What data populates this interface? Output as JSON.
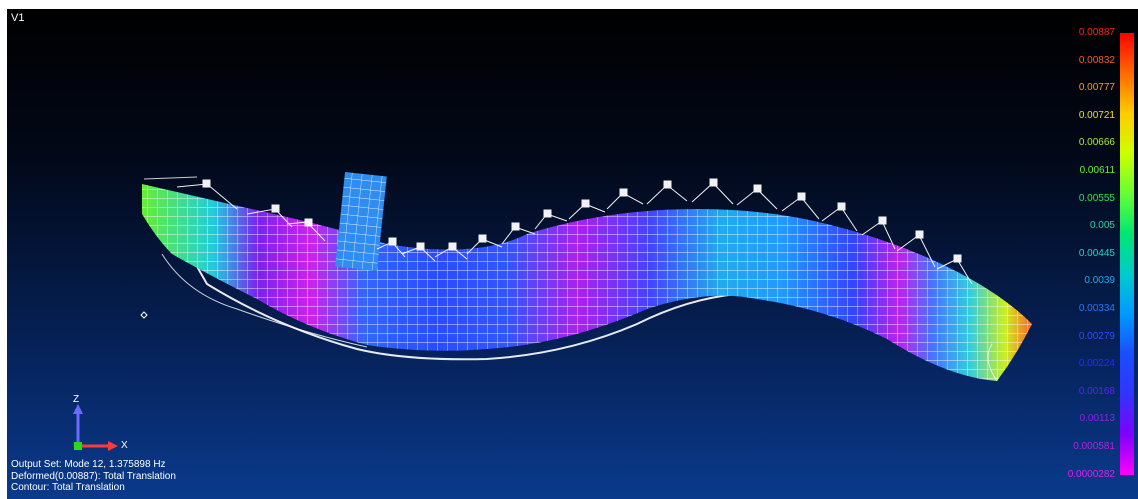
{
  "viewport": {
    "view_label": "V1"
  },
  "legend": {
    "values": [
      "0.00887",
      "0.00832",
      "0.00777",
      "0.00721",
      "0.00666",
      "0.00611",
      "0.00555",
      "0.005",
      "0.00445",
      "0.0039",
      "0.00334",
      "0.00279",
      "0.00224",
      "0.00168",
      "0.00113",
      "0.000581",
      "0.0000282"
    ],
    "label_colors": [
      "#ff2020",
      "#ff5a1e",
      "#ff9a18",
      "#e8e41c",
      "#a8f030",
      "#66f03a",
      "#2ee04c",
      "#2cd4a0",
      "#22d2d2",
      "#1ca8ee",
      "#1e78ff",
      "#2a50ff",
      "#2a2aff",
      "#5a24f0",
      "#8a22e8",
      "#b81ee8",
      "#e41cf0"
    ],
    "gradient_colors": [
      "#ff0000",
      "#ff6a00",
      "#ffcc00",
      "#ccff00",
      "#66ff33",
      "#00e673",
      "#00cccc",
      "#0099ff",
      "#1a4dff",
      "#3333ff",
      "#8000ff",
      "#ff00ff"
    ]
  },
  "triad": {
    "z_label": "Z",
    "x_label": "X"
  },
  "info": {
    "output_set": "Output Set: Mode 12, 1.375898 Hz",
    "deformed": "Deformed(0.00887): Total Translation",
    "contour": "Contour: Total Translation"
  }
}
